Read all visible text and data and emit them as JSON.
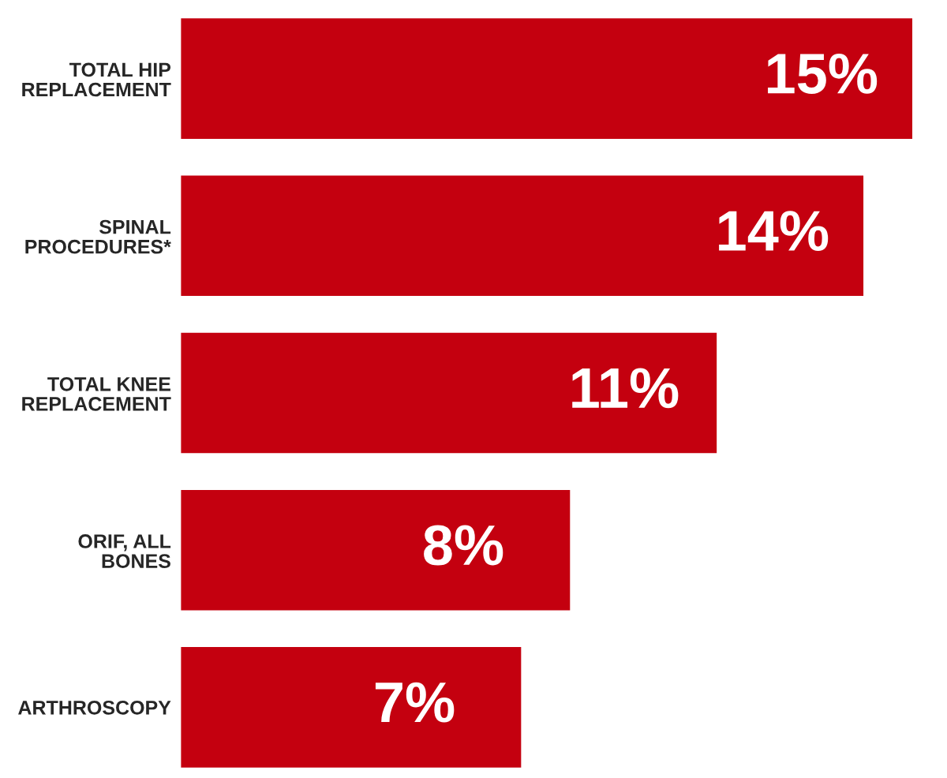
{
  "chart_data": {
    "type": "bar",
    "orientation": "horizontal",
    "categories": [
      "TOTAL HIP\nREPLACEMENT",
      "SPINAL\nPROCEDURES*",
      "TOTAL KNEE\nREPLACEMENT",
      "ORIF, ALL\nBONES",
      "ARTHROSCOPY"
    ],
    "values": [
      15,
      14,
      11,
      8,
      7
    ],
    "value_labels": [
      "15%",
      "14%",
      "11%",
      "8%",
      "7%"
    ],
    "color": "#c4000f",
    "grid": false,
    "legend": false
  }
}
